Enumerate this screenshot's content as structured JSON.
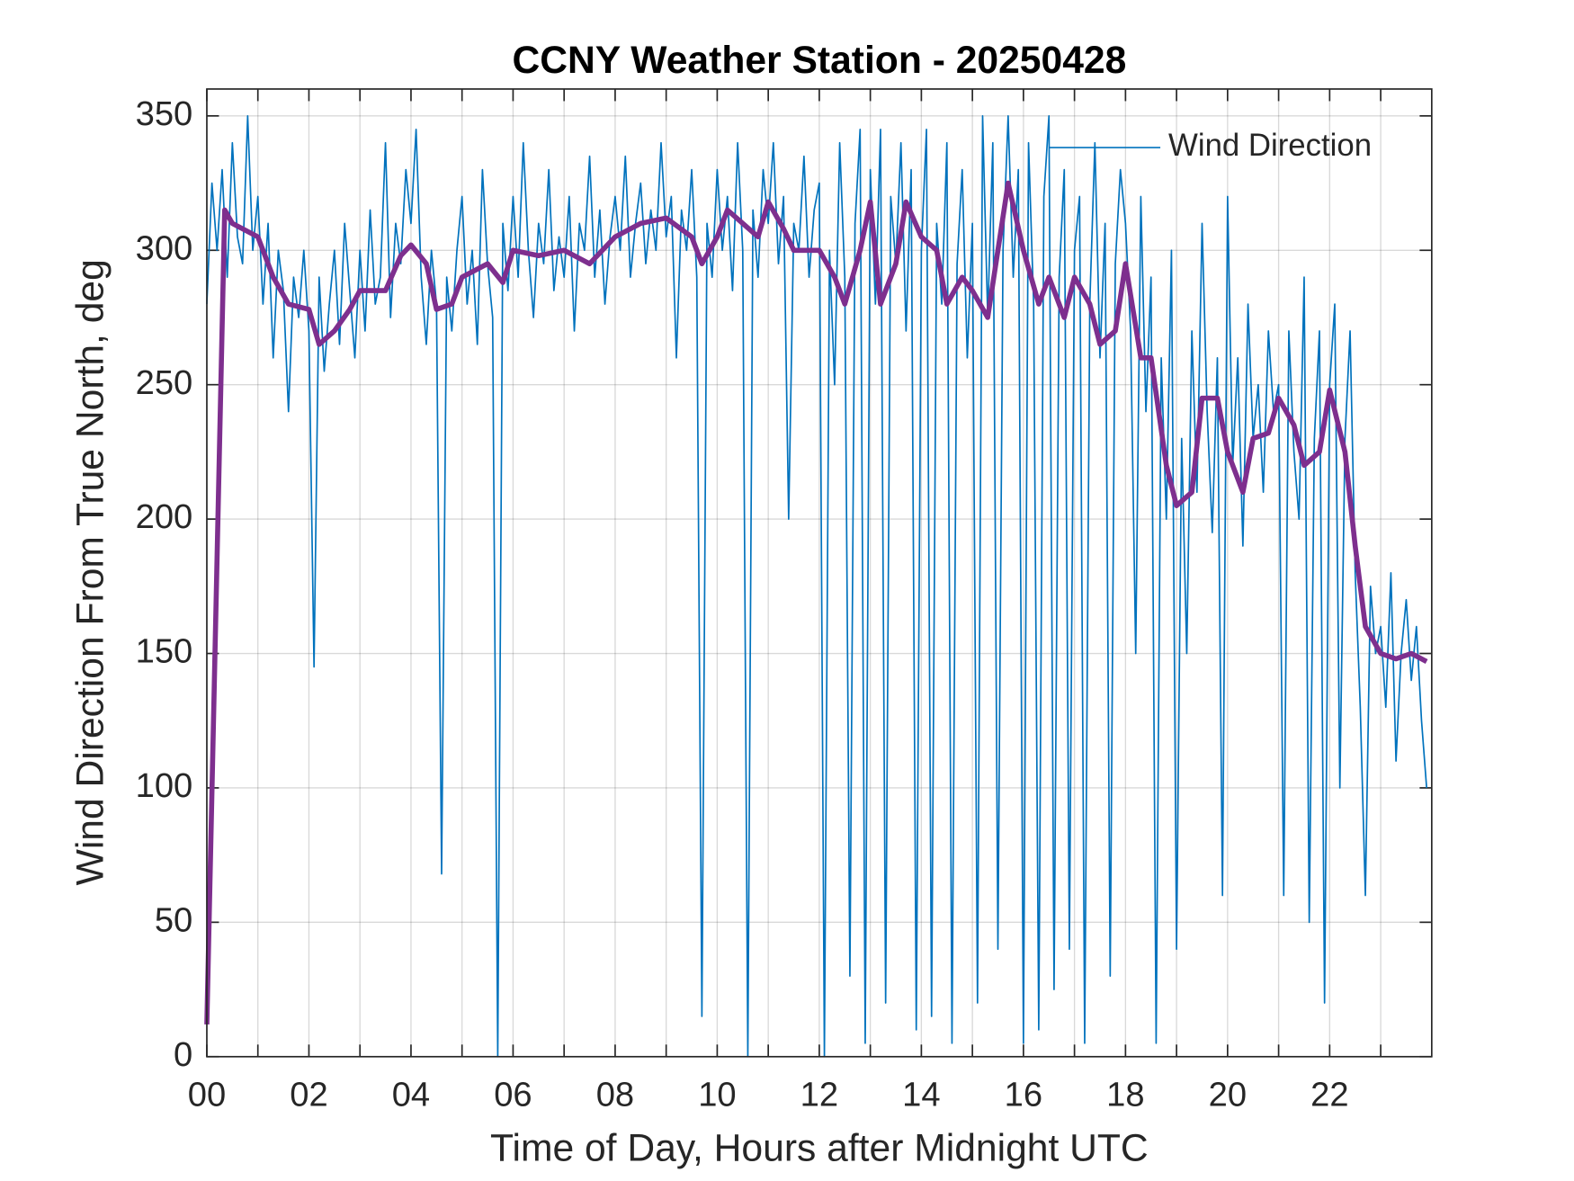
{
  "chart_data": {
    "type": "line",
    "title": "CCNY Weather Station - 20250428",
    "xlabel": "Time of Day, Hours after Midnight UTC",
    "ylabel": "Wind Direction From True North, deg",
    "xlim": [
      0,
      24
    ],
    "ylim": [
      0,
      360
    ],
    "xticks": [
      {
        "value": 0,
        "label": "00"
      },
      {
        "value": 2,
        "label": "02"
      },
      {
        "value": 4,
        "label": "04"
      },
      {
        "value": 6,
        "label": "06"
      },
      {
        "value": 8,
        "label": "08"
      },
      {
        "value": 10,
        "label": "10"
      },
      {
        "value": 12,
        "label": "12"
      },
      {
        "value": 14,
        "label": "14"
      },
      {
        "value": 16,
        "label": "16"
      },
      {
        "value": 18,
        "label": "18"
      },
      {
        "value": 20,
        "label": "20"
      },
      {
        "value": 22,
        "label": "22"
      }
    ],
    "xminor_ticks": [
      1,
      3,
      5,
      7,
      9,
      11,
      13,
      15,
      17,
      19,
      21,
      23
    ],
    "yticks": [
      0,
      50,
      100,
      150,
      200,
      250,
      300,
      350
    ],
    "grid": true,
    "legend": "northeast",
    "series": [
      {
        "name": "Wind Direction",
        "color": "#0072BD",
        "width": 1.5,
        "x": [
          0,
          0.1,
          0.2,
          0.3,
          0.4,
          0.5,
          0.6,
          0.7,
          0.8,
          0.9,
          1,
          1.1,
          1.2,
          1.3,
          1.4,
          1.5,
          1.6,
          1.7,
          1.8,
          1.9,
          2,
          2.1,
          2.2,
          2.3,
          2.4,
          2.5,
          2.6,
          2.7,
          2.8,
          2.9,
          3,
          3.1,
          3.2,
          3.3,
          3.4,
          3.5,
          3.6,
          3.7,
          3.8,
          3.9,
          4,
          4.1,
          4.2,
          4.3,
          4.4,
          4.5,
          4.6,
          4.7,
          4.8,
          4.9,
          5,
          5.1,
          5.2,
          5.3,
          5.4,
          5.5,
          5.6,
          5.7,
          5.8,
          5.9,
          6,
          6.1,
          6.2,
          6.3,
          6.4,
          6.5,
          6.6,
          6.7,
          6.8,
          6.9,
          7,
          7.1,
          7.2,
          7.3,
          7.4,
          7.5,
          7.6,
          7.7,
          7.8,
          7.9,
          8,
          8.1,
          8.2,
          8.3,
          8.4,
          8.5,
          8.6,
          8.7,
          8.8,
          8.9,
          9,
          9.1,
          9.2,
          9.3,
          9.4,
          9.5,
          9.6,
          9.7,
          9.8,
          9.9,
          10,
          10.1,
          10.2,
          10.3,
          10.4,
          10.5,
          10.6,
          10.7,
          10.8,
          10.9,
          11,
          11.1,
          11.2,
          11.3,
          11.4,
          11.5,
          11.6,
          11.7,
          11.8,
          11.9,
          12,
          12.1,
          12.2,
          12.3,
          12.4,
          12.5,
          12.6,
          12.7,
          12.8,
          12.9,
          13,
          13.1,
          13.2,
          13.3,
          13.4,
          13.5,
          13.6,
          13.7,
          13.8,
          13.9,
          14,
          14.1,
          14.2,
          14.3,
          14.4,
          14.5,
          14.6,
          14.7,
          14.8,
          14.9,
          15,
          15.1,
          15.2,
          15.3,
          15.4,
          15.5,
          15.6,
          15.7,
          15.8,
          15.9,
          16,
          16.1,
          16.2,
          16.3,
          16.4,
          16.5,
          16.6,
          16.7,
          16.8,
          16.9,
          17,
          17.1,
          17.2,
          17.3,
          17.4,
          17.5,
          17.6,
          17.7,
          17.8,
          17.9,
          18,
          18.1,
          18.2,
          18.3,
          18.4,
          18.5,
          18.6,
          18.7,
          18.8,
          18.9,
          19,
          19.1,
          19.2,
          19.3,
          19.4,
          19.5,
          19.6,
          19.7,
          19.8,
          19.9,
          20,
          20.1,
          20.2,
          20.3,
          20.4,
          20.5,
          20.6,
          20.7,
          20.8,
          20.9,
          21,
          21.1,
          21.2,
          21.3,
          21.4,
          21.5,
          21.6,
          21.7,
          21.8,
          21.9,
          22,
          22.1,
          22.2,
          22.3,
          22.4,
          22.5,
          22.6,
          22.7,
          22.8,
          22.9,
          23,
          23.1,
          23.2,
          23.3,
          23.4,
          23.5,
          23.6,
          23.7,
          23.8,
          23.9
        ],
        "values": [
          280,
          325,
          300,
          330,
          290,
          340,
          305,
          295,
          350,
          300,
          320,
          280,
          310,
          260,
          300,
          285,
          240,
          290,
          275,
          300,
          270,
          145,
          290,
          255,
          280,
          300,
          265,
          310,
          285,
          260,
          300,
          270,
          315,
          280,
          290,
          340,
          275,
          310,
          295,
          330,
          310,
          345,
          290,
          265,
          300,
          280,
          68,
          290,
          270,
          300,
          320,
          280,
          300,
          265,
          330,
          295,
          275,
          0,
          310,
          285,
          320,
          290,
          340,
          300,
          275,
          310,
          295,
          330,
          285,
          305,
          290,
          320,
          270,
          310,
          300,
          335,
          290,
          315,
          280,
          305,
          320,
          300,
          335,
          290,
          310,
          325,
          295,
          315,
          300,
          340,
          305,
          320,
          260,
          315,
          300,
          330,
          290,
          15,
          310,
          290,
          330,
          300,
          320,
          285,
          340,
          300,
          0,
          315,
          290,
          330,
          310,
          340,
          295,
          320,
          200,
          310,
          300,
          335,
          290,
          315,
          325,
          0,
          300,
          250,
          340,
          290,
          30,
          310,
          345,
          5,
          330,
          280,
          345,
          20,
          320,
          295,
          340,
          270,
          330,
          10,
          300,
          345,
          15,
          310,
          280,
          340,
          5,
          295,
          330,
          260,
          310,
          20,
          350,
          275,
          340,
          40,
          300,
          350,
          290,
          330,
          5,
          340,
          280,
          10,
          320,
          350,
          25,
          290,
          330,
          40,
          300,
          320,
          5,
          280,
          340,
          260,
          310,
          30,
          295,
          330,
          310,
          270,
          150,
          320,
          240,
          290,
          5,
          260,
          200,
          300,
          40,
          230,
          150,
          270,
          210,
          310,
          240,
          195,
          260,
          60,
          320,
          220,
          260,
          190,
          280,
          230,
          250,
          210,
          270,
          240,
          250,
          60,
          270,
          225,
          200,
          290,
          50,
          230,
          270,
          20,
          250,
          280,
          100,
          230,
          270,
          180,
          130,
          60,
          175,
          150,
          160,
          130,
          180,
          110,
          150,
          170,
          140,
          160,
          125,
          100
        ]
      },
      {
        "color": "#7E2F8E",
        "width": 5,
        "x": [
          0,
          0.35,
          0.5,
          1,
          1.3,
          1.6,
          2,
          2.2,
          2.5,
          2.8,
          3,
          3.5,
          3.8,
          4,
          4.3,
          4.5,
          4.8,
          5,
          5.5,
          5.8,
          6,
          6.5,
          7,
          7.5,
          8,
          8.5,
          9,
          9.5,
          9.7,
          10,
          10.2,
          10.5,
          10.8,
          11,
          11.3,
          11.5,
          12,
          12.3,
          12.5,
          12.8,
          13,
          13.2,
          13.5,
          13.7,
          14,
          14.3,
          14.5,
          14.8,
          15,
          15.3,
          15.5,
          15.7,
          16,
          16.3,
          16.5,
          16.8,
          17,
          17.3,
          17.5,
          17.8,
          18,
          18.3,
          18.5,
          18.8,
          19,
          19.3,
          19.5,
          19.8,
          20,
          20.3,
          20.5,
          20.8,
          21,
          21.3,
          21.5,
          21.8,
          22,
          22.3,
          22.5,
          22.7,
          23,
          23.3,
          23.6,
          23.9
        ],
        "values": [
          12,
          315,
          310,
          305,
          290,
          280,
          278,
          265,
          270,
          278,
          285,
          285,
          298,
          302,
          295,
          278,
          280,
          290,
          295,
          288,
          300,
          298,
          300,
          295,
          305,
          310,
          312,
          305,
          295,
          305,
          315,
          310,
          305,
          318,
          308,
          300,
          300,
          290,
          280,
          300,
          318,
          280,
          295,
          318,
          305,
          300,
          280,
          290,
          285,
          275,
          300,
          325,
          300,
          280,
          290,
          275,
          290,
          280,
          265,
          270,
          295,
          260,
          260,
          220,
          205,
          210,
          245,
          245,
          225,
          210,
          230,
          232,
          245,
          235,
          220,
          225,
          248,
          225,
          190,
          160,
          150,
          148,
          150,
          147
        ]
      }
    ]
  }
}
